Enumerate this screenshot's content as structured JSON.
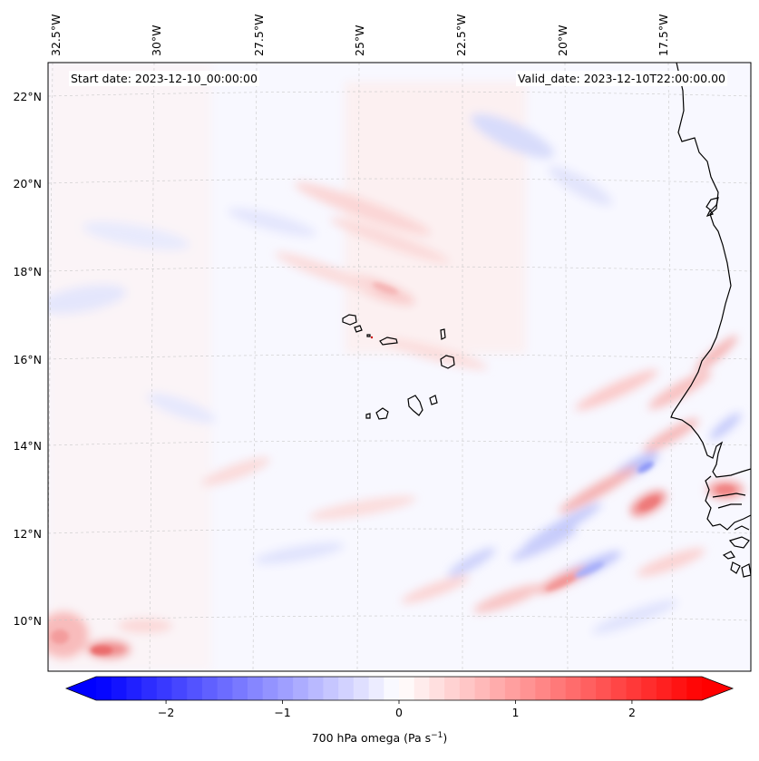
{
  "header": {
    "start_date": "Start date: 2023-12-10_00:00:00",
    "valid_date": "Valid_date: 2023-12-10T22:00:00.00"
  },
  "map": {
    "lon_labels": [
      "32.5°W",
      "30°W",
      "27.5°W",
      "25°W",
      "22.5°W",
      "20°W",
      "17.5°W"
    ],
    "lat_labels": [
      "22°N",
      "20°N",
      "18°N",
      "16°N",
      "14°N",
      "12°N",
      "10°N"
    ],
    "features": [
      "coastline-west-africa",
      "cape-verde-islands",
      "senegal-gambia-coast",
      "bijagos-islands"
    ]
  },
  "colorbar": {
    "label_prefix": "700 hPa omega (Pa s",
    "label_exp": "−1",
    "label_suffix": ")",
    "ticks": [
      "−2",
      "−1",
      "0",
      "1",
      "2"
    ],
    "tick_values": [
      -2,
      -1,
      0,
      1,
      2
    ],
    "vmin": -2.6,
    "vmax": 2.6,
    "colormap": "bwr",
    "color_low": "#0000ff",
    "color_mid": "#ffffff",
    "color_high": "#ff0000"
  },
  "chart_data": {
    "type": "heatmap",
    "variable": "700 hPa omega",
    "units": "Pa s^-1",
    "value_range": [
      -2.6,
      2.6
    ],
    "extend": "both",
    "lon_range_deg": [
      -33,
      -15.5
    ],
    "lat_range_deg": [
      9,
      22.7
    ]
  }
}
